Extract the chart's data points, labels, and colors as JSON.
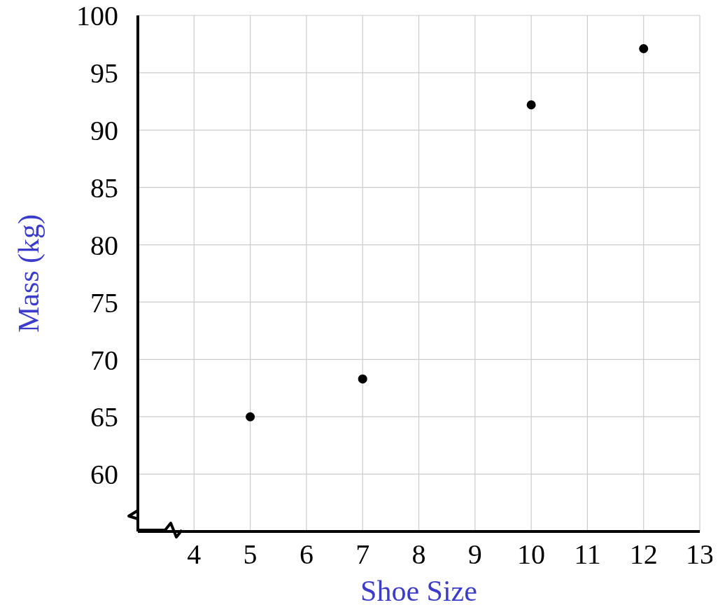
{
  "chart_data": {
    "type": "scatter",
    "xlabel": "Shoe Size",
    "ylabel": "Mass (kg)",
    "x": [
      5,
      7,
      10,
      12
    ],
    "values": [
      65,
      68.3,
      92.2,
      97.1
    ],
    "color": "#000000",
    "marker": "circle",
    "grid": true,
    "xlim": [
      3,
      13
    ],
    "xticks": [
      4,
      5,
      6,
      7,
      8,
      9,
      10,
      11,
      12,
      13
    ],
    "ylim": [
      55,
      100
    ],
    "yticks": [
      60,
      65,
      70,
      75,
      80,
      85,
      90,
      95,
      100
    ]
  }
}
